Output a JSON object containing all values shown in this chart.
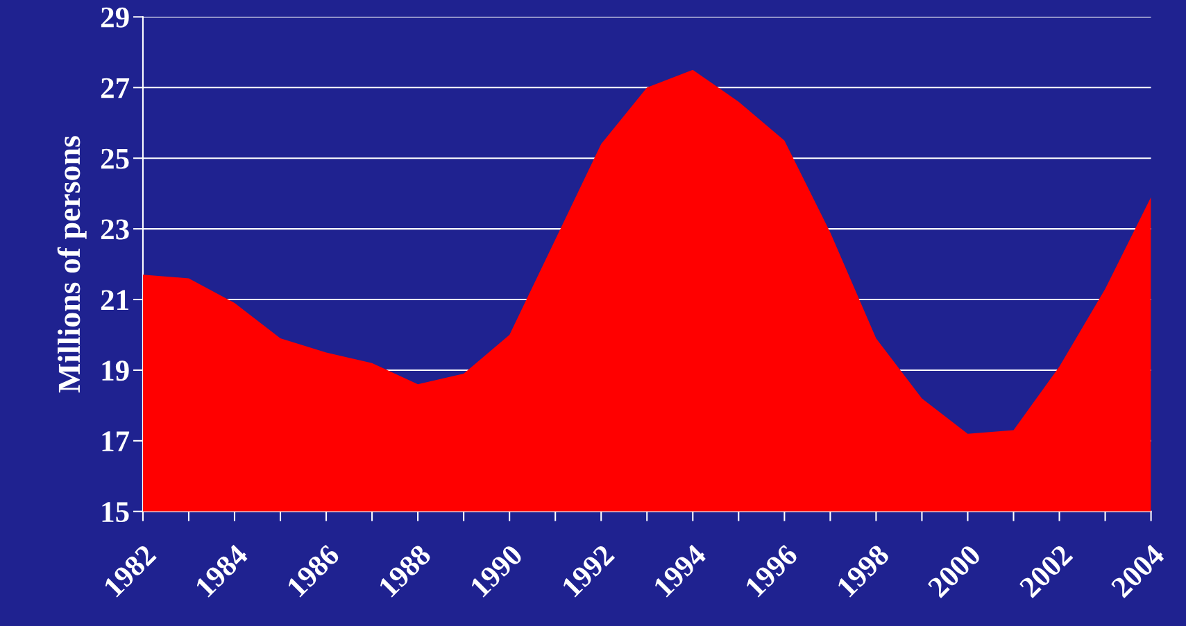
{
  "chart_data": {
    "type": "area",
    "ylabel": "Millions of persons",
    "x": [
      1982,
      1983,
      1984,
      1985,
      1986,
      1987,
      1988,
      1989,
      1990,
      1991,
      1992,
      1993,
      1994,
      1995,
      1996,
      1997,
      1998,
      1999,
      2000,
      2001,
      2002,
      2003,
      2004
    ],
    "series": [
      {
        "color": "#ff0000",
        "values": [
          21.7,
          21.6,
          20.9,
          19.9,
          19.5,
          19.2,
          18.6,
          18.9,
          20.0,
          22.7,
          25.4,
          27.0,
          27.5,
          26.6,
          25.5,
          22.9,
          19.9,
          18.2,
          17.2,
          17.3,
          19.1,
          21.3,
          23.9
        ]
      }
    ],
    "xlim": [
      1982,
      2004
    ],
    "xticks": [
      1982,
      {
        "value": 1983,
        "label": null
      },
      1984,
      {
        "value": 1985,
        "label": null
      },
      1986,
      {
        "value": 1987,
        "label": null
      },
      1988,
      {
        "value": 1989,
        "label": null
      },
      1990,
      {
        "value": 1991,
        "label": null
      },
      1992,
      {
        "value": 1993,
        "label": null
      },
      1994,
      {
        "value": 1995,
        "label": null
      },
      1996,
      {
        "value": 1997,
        "label": null
      },
      1998,
      {
        "value": 1999,
        "label": null
      },
      2000,
      {
        "value": 2001,
        "label": null
      },
      2002,
      {
        "value": 2003,
        "label": null
      },
      2004
    ],
    "ylim": [
      15,
      29
    ],
    "yticks": [
      15,
      17,
      19,
      21,
      23,
      25,
      27,
      29
    ],
    "grid": "y"
  }
}
